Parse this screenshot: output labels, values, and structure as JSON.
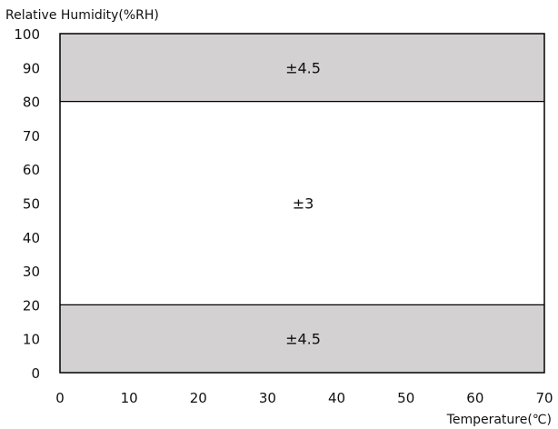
{
  "chart_data": {
    "type": "area",
    "ylabel": "Relative Humidity(%RH)",
    "xlabel": "Temperature(℃)",
    "xlim": [
      0,
      70
    ],
    "ylim": [
      0,
      100
    ],
    "x_ticks": [
      0,
      10,
      20,
      30,
      40,
      50,
      60,
      70
    ],
    "y_ticks": [
      0,
      10,
      20,
      30,
      40,
      50,
      60,
      70,
      80,
      90,
      100
    ],
    "grid": false,
    "zones": [
      {
        "x_range": [
          0,
          70
        ],
        "y_range": [
          80,
          100
        ],
        "label": "±4.5",
        "fill": "#d3d1d2"
      },
      {
        "x_range": [
          0,
          70
        ],
        "y_range": [
          20,
          80
        ],
        "label": "±3",
        "fill": "#ffffff"
      },
      {
        "x_range": [
          0,
          70
        ],
        "y_range": [
          0,
          20
        ],
        "label": "±4.5",
        "fill": "#d3d1d2"
      }
    ]
  }
}
